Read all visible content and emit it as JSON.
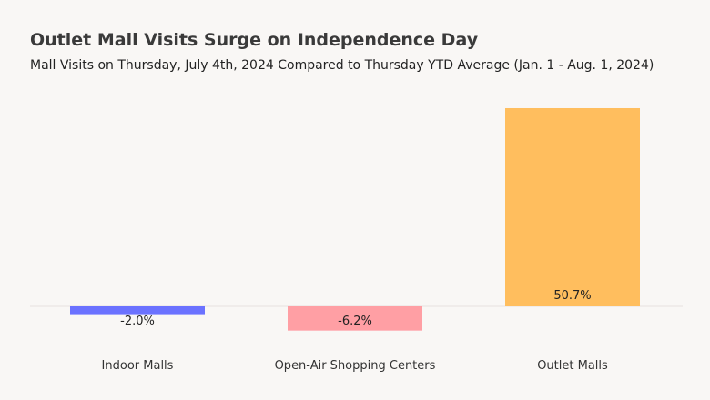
{
  "chart_data": {
    "type": "bar",
    "title": "Outlet Mall Visits Surge on Independence Day",
    "subtitle": "Mall Visits on Thursday, July 4th, 2024 Compared to Thursday YTD Average (Jan. 1 - Aug. 1, 2024)",
    "categories": [
      "Indoor Malls",
      "Open-Air Shopping Centers",
      "Outlet Malls"
    ],
    "values": [
      -2.0,
      -6.2,
      50.7
    ],
    "value_labels": [
      "-2.0%",
      "-6.2%",
      "50.7%"
    ],
    "colors": [
      "#6b72ff",
      "#ff9fa4",
      "#ffbe5e"
    ],
    "xlabel": "",
    "ylabel": "",
    "grid": false,
    "legend": "none"
  }
}
